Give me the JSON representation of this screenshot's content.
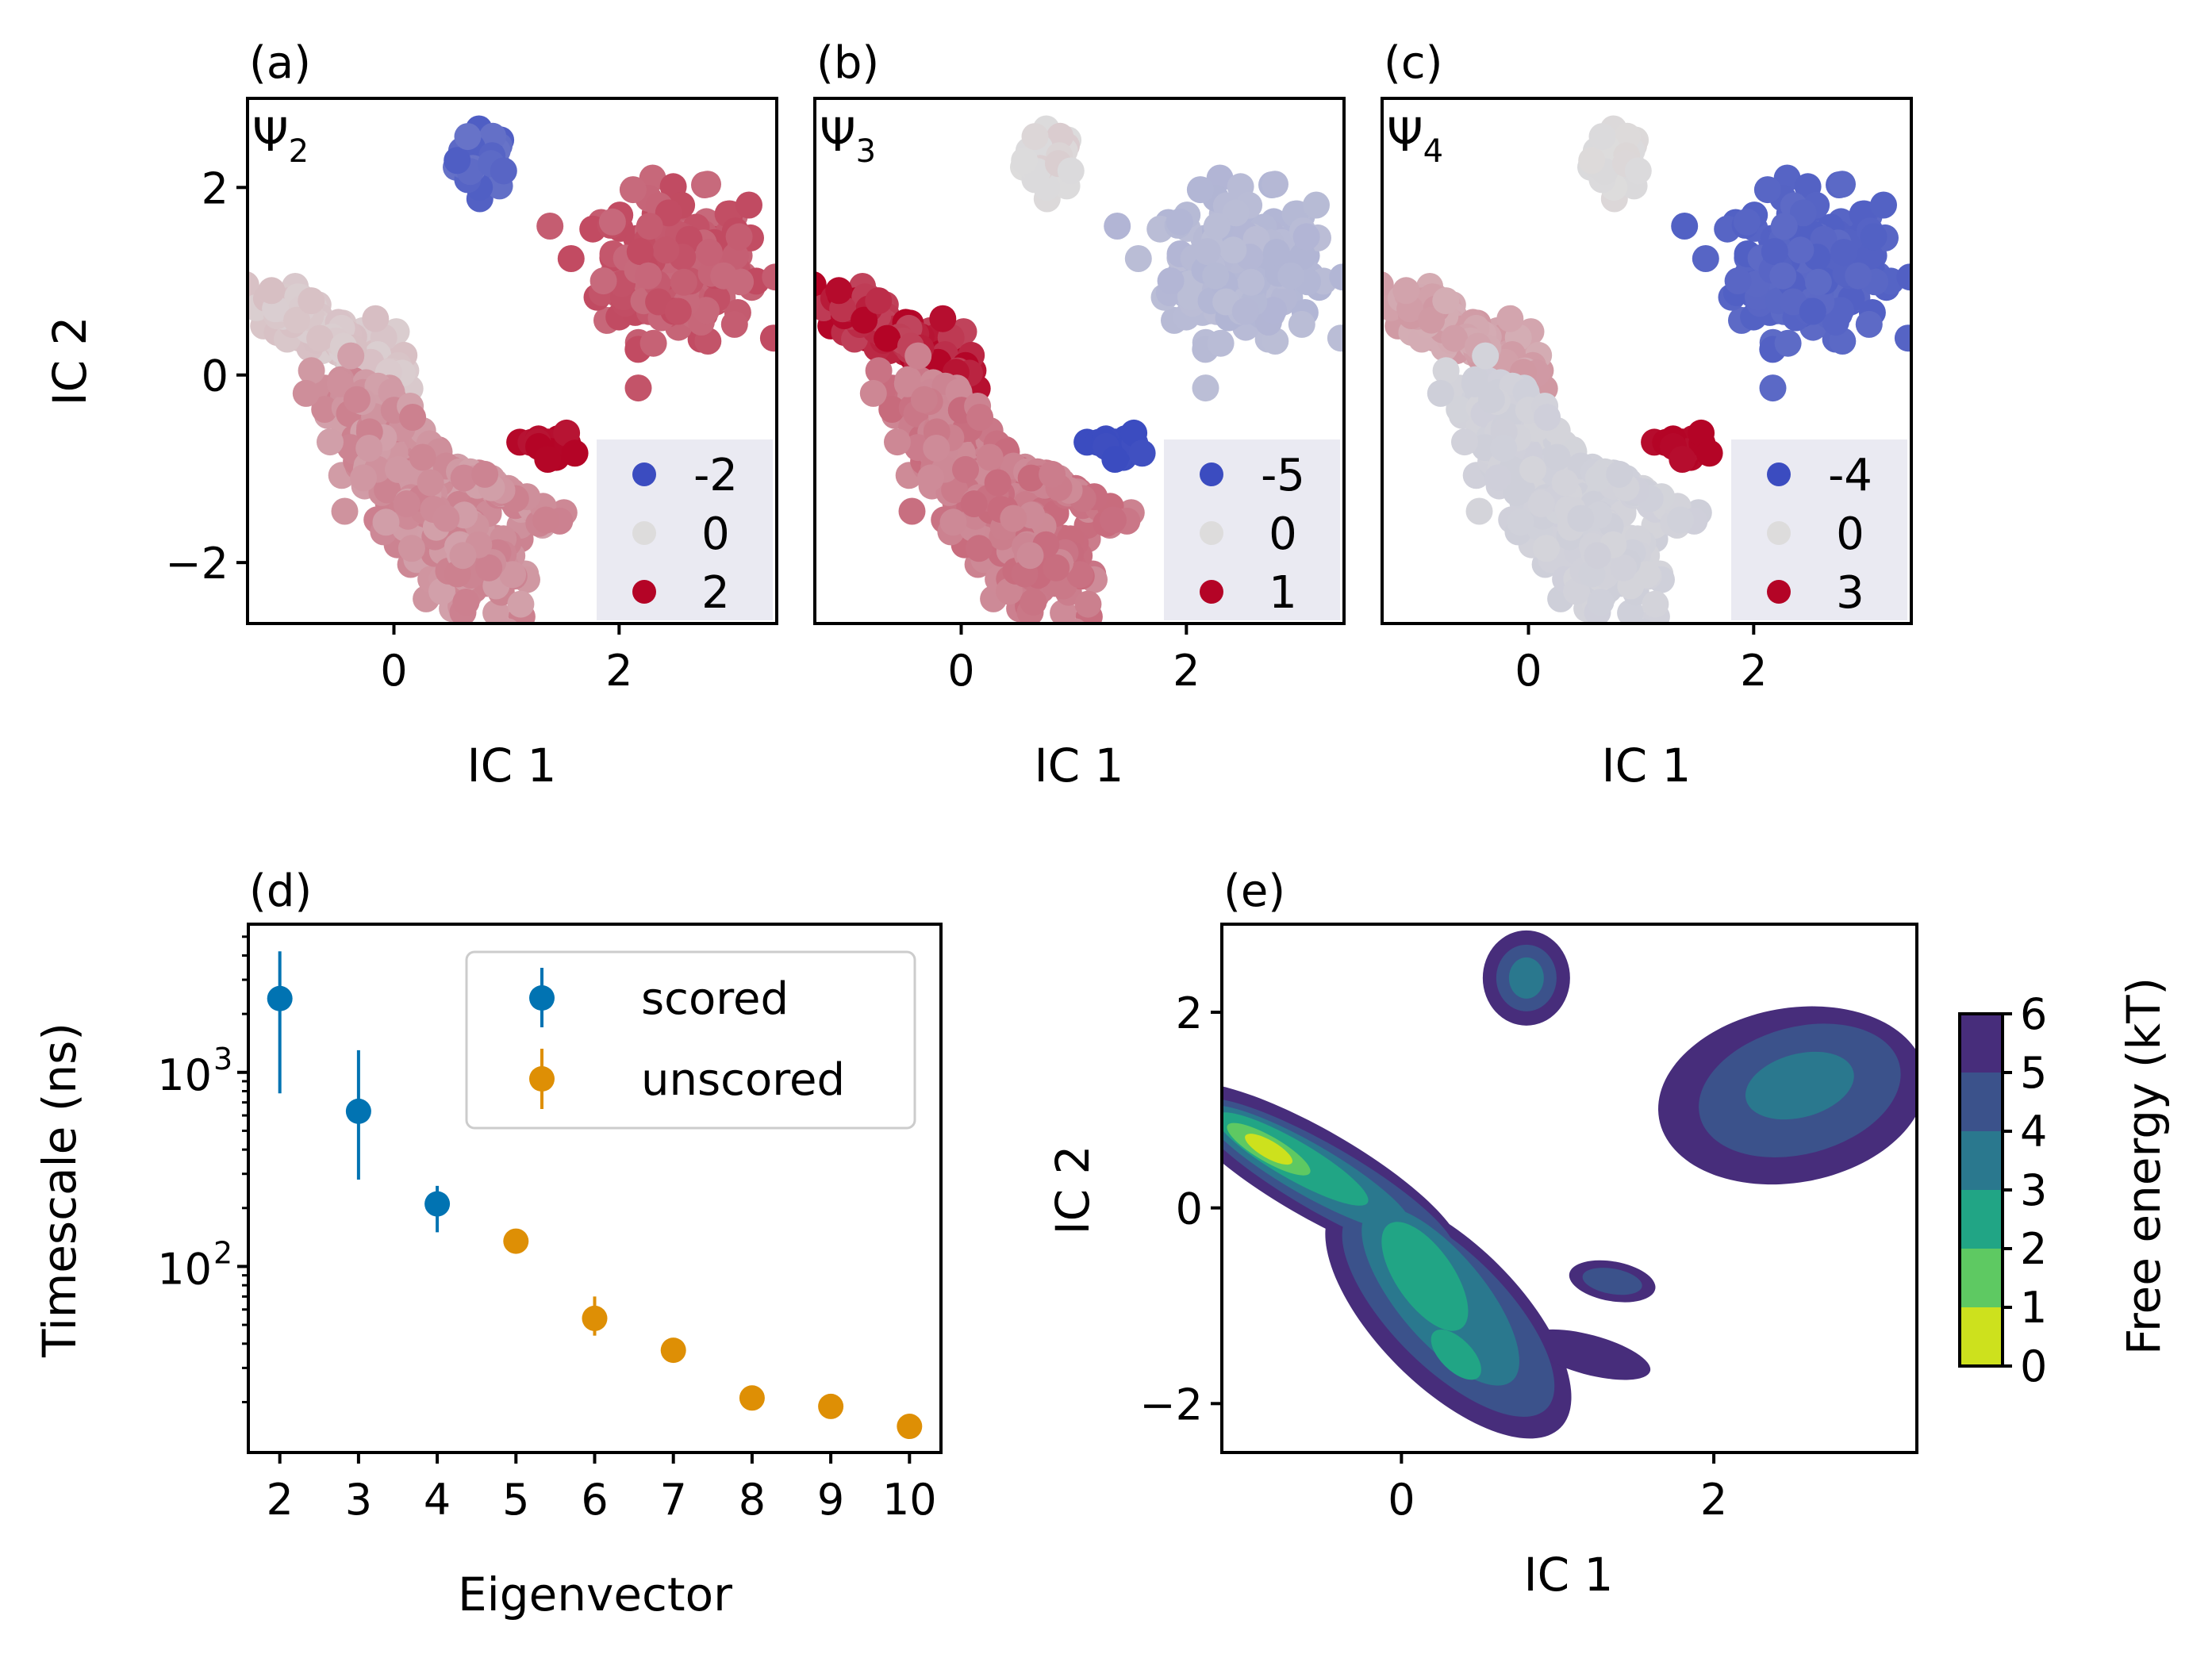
{
  "colors": {
    "diverging_low": "#3b4cc0",
    "diverging_mid": "#dddcdc",
    "diverging_high": "#b40426",
    "scored": "#0173b2",
    "unscored": "#de8f05",
    "legend_bg": "#eaeaf2"
  },
  "chart_data": [
    {
      "type": "scatter",
      "panel_label": "(a)",
      "inner_label": "Ψ",
      "inner_label_sub": "2",
      "xlabel": "IC 1",
      "ylabel": "IC 2",
      "xlim": [
        -1.3,
        3.4
      ],
      "ylim": [
        -2.65,
        2.95
      ],
      "xticks": [
        0,
        2
      ],
      "yticks": [
        -2,
        0,
        2
      ],
      "legend_position": "lower-right",
      "legend": [
        {
          "label": "-2",
          "value": -2
        },
        {
          "label": "0",
          "value": 0
        },
        {
          "label": "2",
          "value": 2
        }
      ],
      "clusters": [
        {
          "name": "top-small",
          "cx": 0.8,
          "cy": 2.3,
          "value": -1.6
        },
        {
          "name": "upper-right",
          "cx": 2.5,
          "cy": 1.2,
          "value": 1.2
        },
        {
          "name": "diagonal-upper",
          "cx": -0.6,
          "cy": 0.5,
          "value": 0.2
        },
        {
          "name": "diagonal-lower",
          "cx": 0.3,
          "cy": -1.2,
          "value": 0.7
        },
        {
          "name": "small-right",
          "cx": 1.35,
          "cy": -0.75,
          "value": 2
        }
      ]
    },
    {
      "type": "scatter",
      "panel_label": "(b)",
      "inner_label": "Ψ",
      "inner_label_sub": "3",
      "xlabel": "IC 1",
      "xlim": [
        -1.3,
        3.4
      ],
      "ylim": [
        -2.65,
        2.95
      ],
      "xticks": [
        0,
        2
      ],
      "legend_position": "lower-right",
      "legend": [
        {
          "label": "-5",
          "value": -5
        },
        {
          "label": "0",
          "value": 0
        },
        {
          "label": "1",
          "value": 1
        }
      ],
      "clusters": [
        {
          "name": "top-small",
          "cx": 0.8,
          "cy": 2.3,
          "value": 0
        },
        {
          "name": "upper-right",
          "cx": 2.5,
          "cy": 1.2,
          "value": -1.2
        },
        {
          "name": "diagonal-upper",
          "cx": -0.6,
          "cy": 0.5,
          "value": 0.85
        },
        {
          "name": "diagonal-lower",
          "cx": 0.3,
          "cy": -1.2,
          "value": 0.45
        },
        {
          "name": "small-right",
          "cx": 1.35,
          "cy": -0.75,
          "value": -5
        }
      ]
    },
    {
      "type": "scatter",
      "panel_label": "(c)",
      "inner_label": "Ψ",
      "inner_label_sub": "4",
      "xlabel": "IC 1",
      "xlim": [
        -1.3,
        3.4
      ],
      "ylim": [
        -2.65,
        2.95
      ],
      "xticks": [
        0,
        2
      ],
      "legend_position": "lower-right",
      "legend": [
        {
          "label": "-4",
          "value": -4
        },
        {
          "label": "0",
          "value": 0
        },
        {
          "label": "3",
          "value": 3
        }
      ],
      "clusters": [
        {
          "name": "top-small",
          "cx": 0.8,
          "cy": 2.3,
          "value": 0
        },
        {
          "name": "upper-right",
          "cx": 2.5,
          "cy": 1.2,
          "value": -3.3
        },
        {
          "name": "diagonal-upper",
          "cx": -0.6,
          "cy": 0.5,
          "value": 0.8
        },
        {
          "name": "diagonal-lower",
          "cx": 0.3,
          "cy": -1.2,
          "value": -0.3
        },
        {
          "name": "small-right",
          "cx": 1.35,
          "cy": -0.75,
          "value": 3
        }
      ]
    },
    {
      "type": "scatter",
      "panel_label": "(d)",
      "xlabel": "Eigenvector",
      "ylabel": "Timescale (ns)",
      "yscale": "log",
      "xlim": [
        1.6,
        10.4
      ],
      "ylim": [
        11,
        5800
      ],
      "xticks": [
        2,
        3,
        4,
        5,
        6,
        7,
        8,
        9,
        10
      ],
      "ytick_labels": [
        "10",
        "10"
      ],
      "ytick_exponents": [
        "3",
        "2"
      ],
      "legend_position": "upper-right",
      "series": [
        {
          "name": "scored",
          "x": [
            2,
            3,
            4
          ],
          "y": [
            2400,
            630,
            210
          ],
          "err_low": [
            780,
            280,
            150
          ],
          "err_high": [
            4200,
            1300,
            260
          ]
        },
        {
          "name": "unscored",
          "x": [
            5,
            6,
            7,
            8,
            9,
            10
          ],
          "y": [
            135,
            54,
            37,
            21,
            19,
            15
          ],
          "err_low": [
            135,
            44,
            37,
            21,
            19,
            13
          ],
          "err_high": [
            135,
            70,
            37,
            21,
            19,
            17
          ]
        }
      ]
    },
    {
      "type": "heatmap",
      "panel_label": "(e)",
      "xlabel": "IC 1",
      "ylabel": "IC 2",
      "xlim": [
        -1.15,
        3.3
      ],
      "ylim": [
        -2.5,
        2.9
      ],
      "xticks": [
        0,
        2
      ],
      "yticks": [
        -2,
        0,
        2
      ],
      "colorbar_label": "Free energy (kT)",
      "colorbar_ticks": [
        "0",
        "1",
        "2",
        "3",
        "4",
        "5",
        "6"
      ],
      "levels": [
        0,
        1,
        2,
        3,
        4,
        5,
        6
      ],
      "level_colors": [
        "#cde11d",
        "#5ec962",
        "#21a585",
        "#2a788e",
        "#3b528b",
        "#472d7b",
        "#440154"
      ]
    }
  ]
}
